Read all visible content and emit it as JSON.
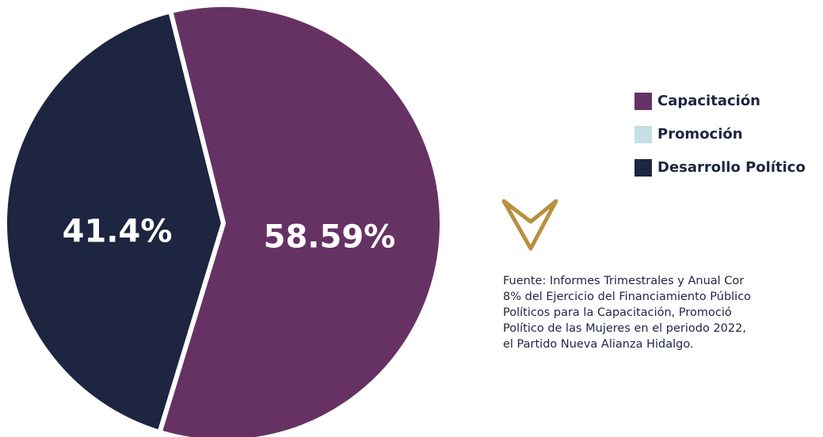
{
  "chart_data": {
    "type": "pie",
    "categories": [
      "Capacitación",
      "Promoción",
      "Desarrollo Político"
    ],
    "values": [
      58.59,
      0,
      41.4
    ],
    "value_labels": [
      "58.59%",
      null,
      "41.4%"
    ],
    "colors": [
      "#663263",
      "#c5dfe3",
      "#1d2541"
    ],
    "legend": "right",
    "footnote": [
      "Fuente: Informes Trimestrales y Anual Cor",
      "8% del Ejercicio del Financiamiento Público",
      "Políticos para la Capacitación, Promoció",
      "Político de las Mujeres en el periodo 2022,",
      "el Partido Nueva Alianza Hidalgo."
    ]
  }
}
